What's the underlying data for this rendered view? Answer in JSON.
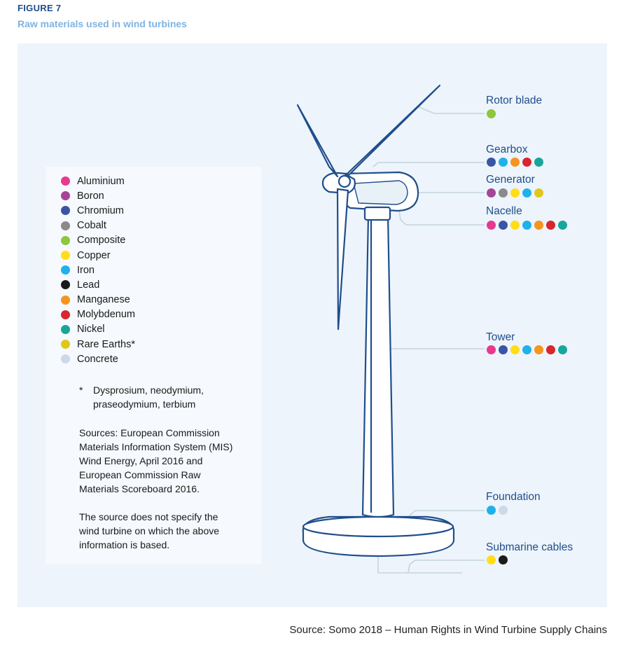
{
  "figure_label": "FIGURE 7",
  "figure_title": "Raw materials used in wind turbines",
  "materials": [
    {
      "name": "Aluminium",
      "color": "#e6398f"
    },
    {
      "name": "Boron",
      "color": "#a64597"
    },
    {
      "name": "Chromium",
      "color": "#3a55a4"
    },
    {
      "name": "Cobalt",
      "color": "#8a8a8a"
    },
    {
      "name": "Composite",
      "color": "#8dc63f"
    },
    {
      "name": "Copper",
      "color": "#ffde17"
    },
    {
      "name": "Iron",
      "color": "#1fb1ea"
    },
    {
      "name": "Lead",
      "color": "#1a1a1a"
    },
    {
      "name": "Manganese",
      "color": "#f7941d"
    },
    {
      "name": "Molybdenum",
      "color": "#d7262e"
    },
    {
      "name": "Nickel",
      "color": "#1aa59a"
    },
    {
      "name": "Rare Earths*",
      "color": "#dfc81a"
    },
    {
      "name": "Concrete",
      "color": "#cdd9e8"
    }
  ],
  "footnote": {
    "mark": "*",
    "text": "Dysprosium, neodymium,\npraseodymium, terbium"
  },
  "sources_note": "Sources: European Commission\nMaterials Information System (MIS)\nWind Energy, April 2016 and\nEuropean Commission Raw\nMaterials Scoreboard 2016.",
  "disclaimer": "The source does not specify the\nwind turbine on which the above\ninformation is based.",
  "components": [
    {
      "name": "Rotor blade",
      "materials": [
        "Composite"
      ]
    },
    {
      "name": "Gearbox",
      "materials": [
        "Chromium",
        "Iron",
        "Manganese",
        "Molybdenum",
        "Nickel"
      ]
    },
    {
      "name": "Generator",
      "materials": [
        "Boron",
        "Cobalt",
        "Copper",
        "Iron",
        "Rare Earths*"
      ]
    },
    {
      "name": "Nacelle",
      "materials": [
        "Aluminium",
        "Chromium",
        "Copper",
        "Iron",
        "Manganese",
        "Molybdenum",
        "Nickel"
      ]
    },
    {
      "name": "Tower",
      "materials": [
        "Aluminium",
        "Chromium",
        "Copper",
        "Iron",
        "Manganese",
        "Molybdenum",
        "Nickel"
      ]
    },
    {
      "name": "Foundation",
      "materials": [
        "Iron",
        "Concrete"
      ]
    },
    {
      "name": "Submarine cables",
      "materials": [
        "Copper",
        "Lead"
      ]
    }
  ],
  "source_line": "Source: Somo 2018 – Human Rights in Wind Turbine Supply Chains",
  "colors": {
    "outline": "#1f4e8c",
    "panel": "#edf4fb",
    "legend_box": "#f6f9fd",
    "leader_line": "#c5d3e0"
  }
}
